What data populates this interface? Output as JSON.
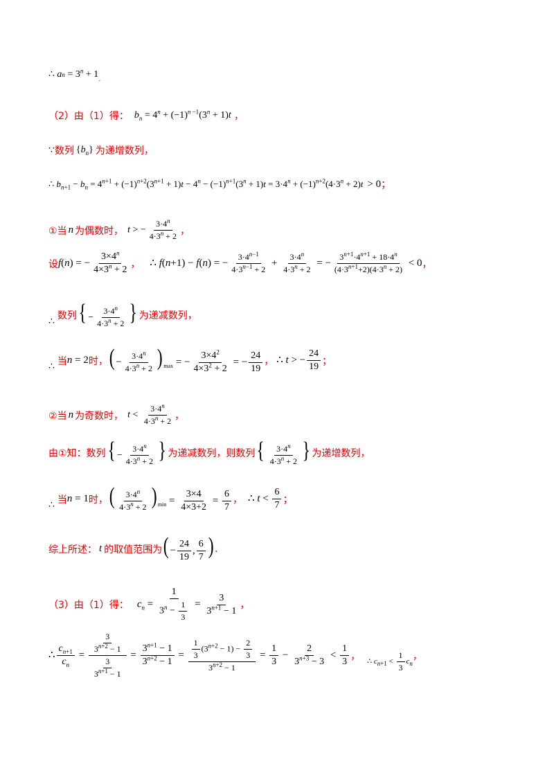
{
  "lines": {
    "l1": "∴ a_n = 3^n + 1 .",
    "l2_label": "（2）由（1）得：",
    "l2_formula": "b_n = 4^n + (−1)^(n−1)(3^n + 1)t ，",
    "l3_text_a": "数列",
    "l3_text_b": "为递增数列，",
    "l3_seq": "{b_n}",
    "l4_formula": "∴ b_(n+1) − b_n = 4^(n+1) + (−1)^(n+2)(3^(n+1)+1)t − 4^n − (−1)^(n+1)(3^n+1)t = 3·4^n + (−1)^(n+2)(4·3^n+2)t > 0；",
    "l5_text_a": "①当",
    "l5_text_b": "为偶数时，",
    "l5_n": "n",
    "l6_label": "设",
    "l7_text_a": "数列",
    "l7_text_b": "为递减数列，",
    "l8_text_a": "当",
    "l8_text_b": "时，",
    "l9_text_a": "②当",
    "l9_text_b": "为奇数时，",
    "l10_text_a": "由①知：数列",
    "l10_text_b": "为递减数列，则数列",
    "l10_text_c": "为递增数列，",
    "l11_text_a": "当",
    "l11_text_b": "时，",
    "l12_text_a": "综上所述：",
    "l12_text_b": "的取值范围为",
    "l13_label": "（3）由（1）得："
  }
}
